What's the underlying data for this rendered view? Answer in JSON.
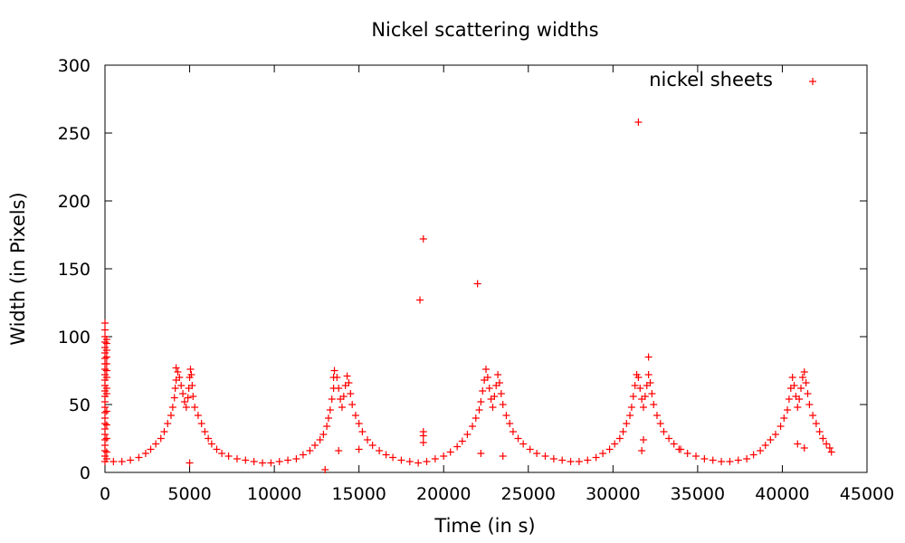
{
  "chart_data": {
    "type": "scatter",
    "title": "Nickel scattering widths",
    "xlabel": "Time (in s)",
    "ylabel": "Width (in Pixels)",
    "xlim": [
      0,
      45000
    ],
    "ylim": [
      0,
      300
    ],
    "xticks": [
      0,
      5000,
      10000,
      15000,
      20000,
      25000,
      30000,
      35000,
      40000,
      45000
    ],
    "yticks": [
      0,
      50,
      100,
      150,
      200,
      250,
      300
    ],
    "grid": false,
    "legend_position": "top-right",
    "marker": "+",
    "color": "#ff0000",
    "series": [
      {
        "name": "nickel sheets",
        "points": [
          [
            0,
            110
          ],
          [
            0,
            105
          ],
          [
            0,
            100
          ],
          [
            0,
            96
          ],
          [
            0,
            92
          ],
          [
            0,
            88
          ],
          [
            0,
            84
          ],
          [
            0,
            80
          ],
          [
            0,
            76
          ],
          [
            0,
            72
          ],
          [
            0,
            68
          ],
          [
            0,
            64
          ],
          [
            0,
            60
          ],
          [
            0,
            56
          ],
          [
            0,
            52
          ],
          [
            0,
            48
          ],
          [
            0,
            44
          ],
          [
            0,
            40
          ],
          [
            0,
            36
          ],
          [
            0,
            32
          ],
          [
            0,
            28
          ],
          [
            0,
            24
          ],
          [
            0,
            20
          ],
          [
            0,
            16
          ],
          [
            0,
            12
          ],
          [
            0,
            8
          ],
          [
            100,
            98
          ],
          [
            100,
            95
          ],
          [
            100,
            90
          ],
          [
            100,
            85
          ],
          [
            100,
            80
          ],
          [
            100,
            75
          ],
          [
            100,
            70
          ],
          [
            100,
            62
          ],
          [
            100,
            58
          ],
          [
            100,
            45
          ],
          [
            100,
            35
          ],
          [
            100,
            25
          ],
          [
            100,
            15
          ],
          [
            100,
            10
          ],
          [
            500,
            8
          ],
          [
            1000,
            8
          ],
          [
            1500,
            9
          ],
          [
            2000,
            11
          ],
          [
            2400,
            14
          ],
          [
            2700,
            17
          ],
          [
            3000,
            21
          ],
          [
            3300,
            25
          ],
          [
            3500,
            30
          ],
          [
            3700,
            36
          ],
          [
            3900,
            42
          ],
          [
            4000,
            48
          ],
          [
            4100,
            55
          ],
          [
            4150,
            62
          ],
          [
            4200,
            68
          ],
          [
            4200,
            77
          ],
          [
            4300,
            74
          ],
          [
            4400,
            70
          ],
          [
            4500,
            64
          ],
          [
            4600,
            58
          ],
          [
            4700,
            52
          ],
          [
            4800,
            48
          ],
          [
            4900,
            55
          ],
          [
            4950,
            62
          ],
          [
            5000,
            70
          ],
          [
            5050,
            76
          ],
          [
            5100,
            72
          ],
          [
            5150,
            64
          ],
          [
            5200,
            56
          ],
          [
            5300,
            48
          ],
          [
            5500,
            42
          ],
          [
            5700,
            36
          ],
          [
            5900,
            30
          ],
          [
            6100,
            25
          ],
          [
            6300,
            21
          ],
          [
            6600,
            17
          ],
          [
            6900,
            14
          ],
          [
            7300,
            12
          ],
          [
            7800,
            10
          ],
          [
            8300,
            9
          ],
          [
            8800,
            8
          ],
          [
            9300,
            7
          ],
          [
            9800,
            7
          ],
          [
            10300,
            8
          ],
          [
            10800,
            9
          ],
          [
            11300,
            10
          ],
          [
            11700,
            13
          ],
          [
            12100,
            16
          ],
          [
            12400,
            20
          ],
          [
            12700,
            24
          ],
          [
            12900,
            28
          ],
          [
            13100,
            34
          ],
          [
            13200,
            40
          ],
          [
            13300,
            46
          ],
          [
            13400,
            54
          ],
          [
            13500,
            62
          ],
          [
            13500,
            70
          ],
          [
            13550,
            75
          ],
          [
            13700,
            70
          ],
          [
            13800,
            62
          ],
          [
            13900,
            54
          ],
          [
            14000,
            48
          ],
          [
            14100,
            56
          ],
          [
            14200,
            64
          ],
          [
            14300,
            71
          ],
          [
            14400,
            66
          ],
          [
            14500,
            58
          ],
          [
            14600,
            50
          ],
          [
            14800,
            42
          ],
          [
            15000,
            36
          ],
          [
            15200,
            30
          ],
          [
            15500,
            24
          ],
          [
            15800,
            20
          ],
          [
            16200,
            16
          ],
          [
            16600,
            13
          ],
          [
            17000,
            11
          ],
          [
            17500,
            9
          ],
          [
            18000,
            8
          ],
          [
            18500,
            7
          ],
          [
            19000,
            8
          ],
          [
            19500,
            10
          ],
          [
            20000,
            12
          ],
          [
            20400,
            15
          ],
          [
            20800,
            19
          ],
          [
            21100,
            23
          ],
          [
            21400,
            28
          ],
          [
            21700,
            34
          ],
          [
            21900,
            40
          ],
          [
            22100,
            46
          ],
          [
            22200,
            52
          ],
          [
            22300,
            60
          ],
          [
            22400,
            68
          ],
          [
            22500,
            76
          ],
          [
            22600,
            70
          ],
          [
            22700,
            62
          ],
          [
            22800,
            54
          ],
          [
            22900,
            48
          ],
          [
            23000,
            56
          ],
          [
            23100,
            64
          ],
          [
            23200,
            72
          ],
          [
            23300,
            66
          ],
          [
            23400,
            58
          ],
          [
            23500,
            50
          ],
          [
            23700,
            42
          ],
          [
            23900,
            36
          ],
          [
            24100,
            30
          ],
          [
            24400,
            25
          ],
          [
            24700,
            21
          ],
          [
            25100,
            17
          ],
          [
            25500,
            14
          ],
          [
            26000,
            12
          ],
          [
            26500,
            10
          ],
          [
            27000,
            9
          ],
          [
            27500,
            8
          ],
          [
            28000,
            8
          ],
          [
            28500,
            9
          ],
          [
            29000,
            11
          ],
          [
            29400,
            14
          ],
          [
            29800,
            17
          ],
          [
            30100,
            21
          ],
          [
            30400,
            25
          ],
          [
            30600,
            30
          ],
          [
            30800,
            36
          ],
          [
            31000,
            42
          ],
          [
            31100,
            48
          ],
          [
            31200,
            56
          ],
          [
            31300,
            64
          ],
          [
            31400,
            72
          ],
          [
            31500,
            70
          ],
          [
            31600,
            62
          ],
          [
            31700,
            54
          ],
          [
            31800,
            48
          ],
          [
            31900,
            56
          ],
          [
            32000,
            64
          ],
          [
            32100,
            72
          ],
          [
            32200,
            66
          ],
          [
            32300,
            58
          ],
          [
            32400,
            50
          ],
          [
            32600,
            42
          ],
          [
            32800,
            36
          ],
          [
            33000,
            30
          ],
          [
            33300,
            25
          ],
          [
            33600,
            21
          ],
          [
            34000,
            17
          ],
          [
            34400,
            14
          ],
          [
            34900,
            12
          ],
          [
            35400,
            10
          ],
          [
            35900,
            9
          ],
          [
            36400,
            8
          ],
          [
            36900,
            8
          ],
          [
            37400,
            9
          ],
          [
            37900,
            10
          ],
          [
            38300,
            13
          ],
          [
            38700,
            16
          ],
          [
            39000,
            20
          ],
          [
            39300,
            24
          ],
          [
            39600,
            28
          ],
          [
            39900,
            34
          ],
          [
            40100,
            40
          ],
          [
            40300,
            46
          ],
          [
            40400,
            54
          ],
          [
            40500,
            62
          ],
          [
            40600,
            70
          ],
          [
            40700,
            64
          ],
          [
            40800,
            56
          ],
          [
            40900,
            48
          ],
          [
            41000,
            54
          ],
          [
            41100,
            62
          ],
          [
            41200,
            70
          ],
          [
            41300,
            74
          ],
          [
            41400,
            66
          ],
          [
            41500,
            58
          ],
          [
            41600,
            50
          ],
          [
            41800,
            42
          ],
          [
            42000,
            36
          ],
          [
            42200,
            30
          ],
          [
            42400,
            25
          ],
          [
            42600,
            21
          ],
          [
            42800,
            18
          ],
          [
            42900,
            15
          ],
          [
            5000,
            7
          ],
          [
            13000,
            2
          ],
          [
            13800,
            16
          ],
          [
            15000,
            17
          ],
          [
            18600,
            127
          ],
          [
            18800,
            172
          ],
          [
            18800,
            30
          ],
          [
            18800,
            27
          ],
          [
            18800,
            22
          ],
          [
            22000,
            139
          ],
          [
            22200,
            14
          ],
          [
            23500,
            12
          ],
          [
            31500,
            258
          ],
          [
            31700,
            16
          ],
          [
            31800,
            24
          ],
          [
            32100,
            85
          ],
          [
            33900,
            17
          ],
          [
            40900,
            21
          ],
          [
            41300,
            18
          ]
        ]
      }
    ]
  }
}
